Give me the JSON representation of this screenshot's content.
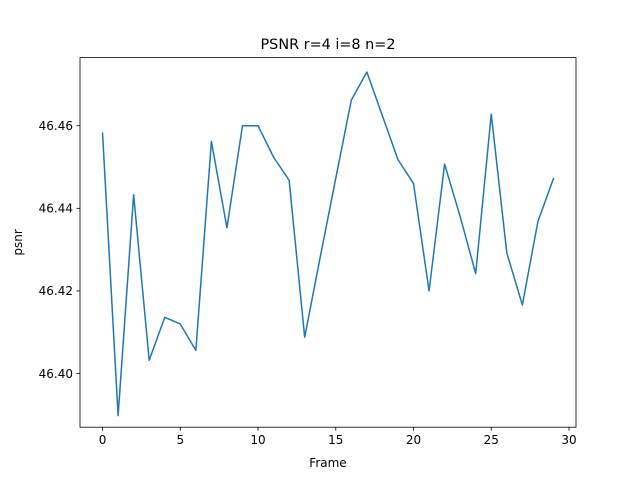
{
  "chart_data": {
    "type": "line",
    "title": "PSNR r=4 i=8 n=2",
    "xlabel": "Frame",
    "ylabel": "psnr",
    "xlim": [
      -1.45,
      30.45
    ],
    "ylim": [
      46.387,
      46.4765
    ],
    "xticks": [
      0,
      5,
      10,
      15,
      20,
      25,
      30
    ],
    "yticks": [
      46.4,
      46.42,
      46.44,
      46.46
    ],
    "ytick_labels": [
      "46.40",
      "46.42",
      "46.44",
      "46.46"
    ],
    "grid": false,
    "legend": "none",
    "series": [
      {
        "color": "#1f77b4",
        "x": [
          0,
          1,
          2,
          3,
          4,
          5,
          6,
          7,
          8,
          9,
          10,
          11,
          12,
          13,
          14,
          15,
          16,
          17,
          18,
          19,
          20,
          21,
          22,
          23,
          24,
          25,
          26,
          27,
          28,
          29
        ],
        "y": [
          46.4582,
          46.3898,
          46.4433,
          46.4032,
          46.4136,
          46.412,
          46.4056,
          46.4562,
          46.4353,
          46.46,
          46.46,
          46.4524,
          46.4468,
          46.4088,
          46.4282,
          46.4473,
          46.4662,
          46.473,
          46.4624,
          46.4518,
          46.446,
          46.42,
          46.4507,
          46.438,
          46.4242,
          46.4628,
          46.4292,
          46.4166,
          46.4368,
          46.4472
        ]
      }
    ]
  }
}
